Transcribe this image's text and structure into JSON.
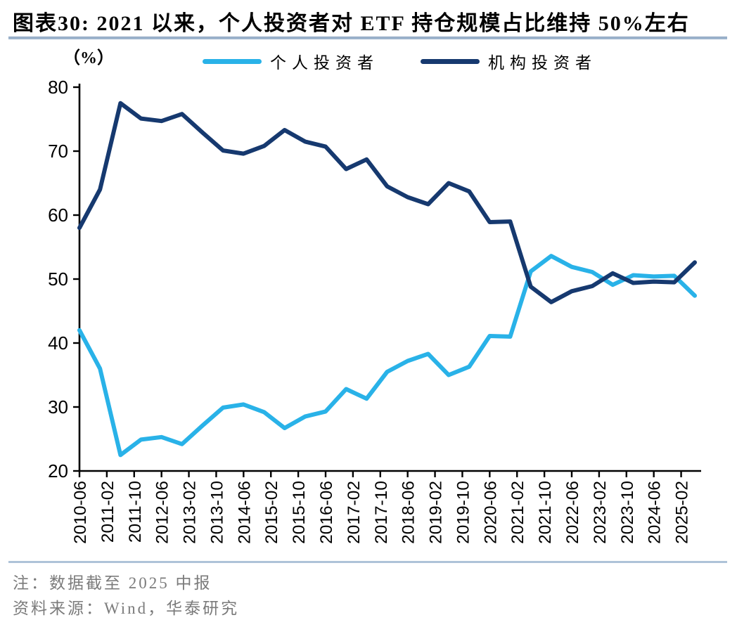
{
  "header": {
    "title": "图表30:  2021 以来，个人投资者对 ETF 持仓规模占比维持 50%左右"
  },
  "chart": {
    "unit_label": "（%）"
  },
  "chart_data": {
    "type": "line",
    "title": "2021 以来，个人投资者对 ETF 持仓规模占比维持 50%左右",
    "unit": "%",
    "xlabel": "",
    "ylabel": "（%）",
    "ylim": [
      20,
      80
    ],
    "y_ticks": [
      20,
      30,
      40,
      50,
      60,
      70,
      80
    ],
    "grid": false,
    "legend_position": "top",
    "x": [
      "2010-06",
      "2010-12",
      "2011-06",
      "2011-12",
      "2012-06",
      "2012-12",
      "2013-06",
      "2013-12",
      "2014-06",
      "2014-12",
      "2015-06",
      "2015-12",
      "2016-06",
      "2016-12",
      "2017-06",
      "2017-12",
      "2018-06",
      "2018-12",
      "2019-06",
      "2019-12",
      "2020-06",
      "2020-12",
      "2021-06",
      "2021-12",
      "2022-06",
      "2022-12",
      "2023-06",
      "2023-12",
      "2024-06",
      "2024-12",
      "2025-06"
    ],
    "x_tick_labels": [
      "2010-06",
      "2011-02",
      "2011-10",
      "2012-06",
      "2013-02",
      "2013-10",
      "2014-06",
      "2015-02",
      "2015-10",
      "2016-06",
      "2017-02",
      "2017-10",
      "2018-06",
      "2019-02",
      "2019-10",
      "2020-06",
      "2021-02",
      "2021-10",
      "2022-06",
      "2023-02",
      "2023-10",
      "2024-06",
      "2025-02"
    ],
    "series": [
      {
        "name": "个人投资者",
        "color": "#29b2e8",
        "values": [
          42.0,
          36.0,
          22.5,
          24.9,
          25.3,
          24.2,
          27.1,
          29.9,
          30.4,
          29.2,
          26.7,
          28.5,
          29.3,
          32.8,
          31.3,
          35.5,
          37.2,
          38.3,
          35.0,
          36.3,
          41.1,
          41.0,
          51.2,
          53.6,
          51.9,
          51.1,
          49.1,
          50.6,
          50.4,
          50.5,
          47.4
        ]
      },
      {
        "name": "机构投资者",
        "color": "#16396f",
        "values": [
          58.0,
          64.0,
          77.5,
          75.1,
          74.7,
          75.8,
          72.9,
          70.1,
          69.6,
          70.8,
          73.3,
          71.5,
          70.7,
          67.2,
          68.7,
          64.5,
          62.8,
          61.7,
          65.0,
          63.7,
          58.9,
          59.0,
          48.8,
          46.4,
          48.1,
          48.9,
          50.9,
          49.4,
          49.6,
          49.5,
          52.6
        ]
      }
    ]
  },
  "footer": {
    "note": "注：数据截至 2025 中报",
    "source": "资料来源：Wind，华泰研究"
  }
}
